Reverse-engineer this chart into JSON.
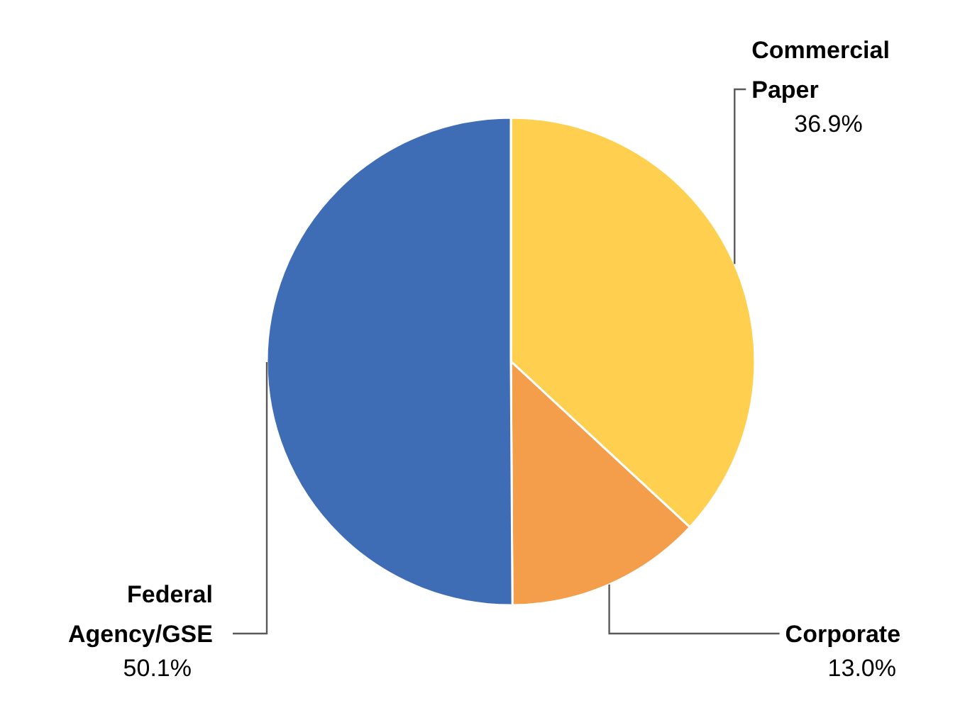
{
  "chart_data": {
    "type": "pie",
    "categories": [
      "Commercial Paper",
      "Corporate",
      "Federal Agency/GSE"
    ],
    "values": [
      36.9,
      13.0,
      50.1
    ],
    "colors": [
      "#ffd050",
      "#f49d4a",
      "#3f6db5"
    ],
    "value_labels": [
      "36.9%",
      "13.0%",
      "50.1%"
    ],
    "legend": false
  }
}
